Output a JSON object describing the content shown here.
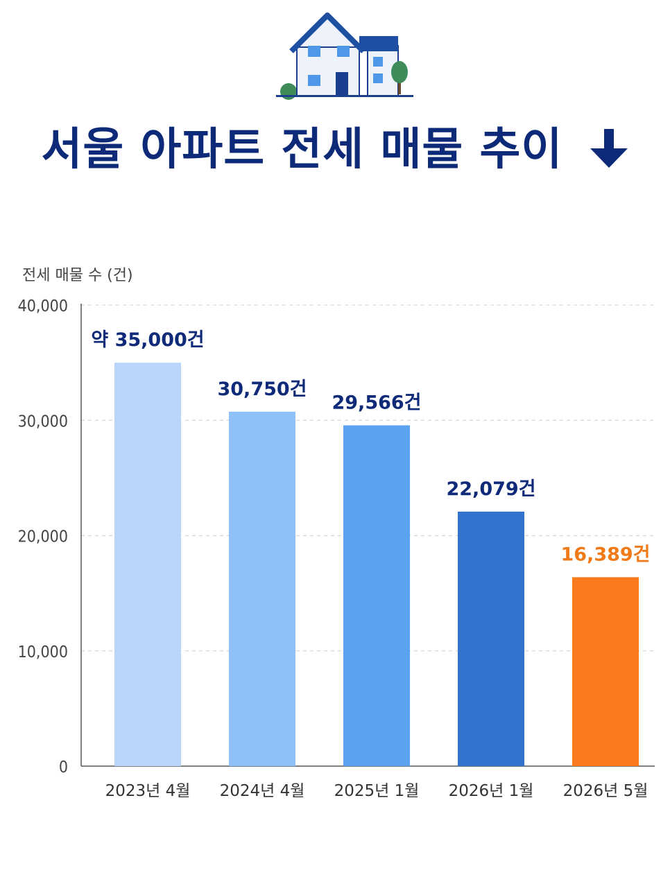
{
  "title": "서울 아파트 전세 매물 추이",
  "icons": {
    "header": "house-icon",
    "trend": "arrow-down-icon"
  },
  "colors": {
    "title": "#0c2a78",
    "label_default": "#0e2a78",
    "label_highlight": "#f07a18",
    "bars": [
      "#b8d6fb",
      "#8ebff7",
      "#5aa3f1",
      "#3273cf",
      "#fb7a1b"
    ]
  },
  "chart_data": {
    "type": "bar",
    "ylabel": "전세 매물 수 (건)",
    "categories": [
      "2023년 4월",
      "2024년 4월",
      "2025년 1월",
      "2026년 1월",
      "2026년 5월"
    ],
    "values": [
      35000,
      30750,
      29566,
      22079,
      16389
    ],
    "value_labels": [
      "약 35,000건",
      "30,750건",
      "29,566건",
      "22,079건",
      "16,389건"
    ],
    "ylim": [
      0,
      40000
    ],
    "yticks": [
      0,
      10000,
      20000,
      30000,
      40000
    ],
    "ytick_labels": [
      "0",
      "10,000",
      "20,000",
      "30,000",
      "40,000"
    ],
    "grid": true,
    "highlight_index": 4
  }
}
